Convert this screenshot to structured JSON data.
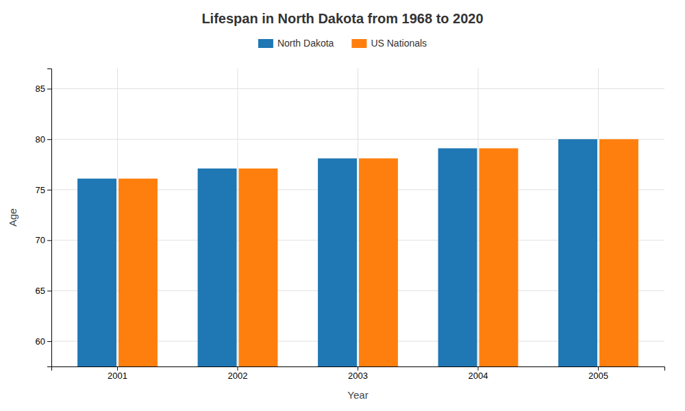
{
  "chart_data": {
    "type": "bar",
    "title": "Lifespan in North Dakota from 1968 to 2020",
    "xlabel": "Year",
    "ylabel": "Age",
    "categories": [
      "2001",
      "2002",
      "2003",
      "2004",
      "2005"
    ],
    "series": [
      {
        "name": "North Dakota",
        "values": [
          76.1,
          77.1,
          78.1,
          79.1,
          80.0
        ]
      },
      {
        "name": "US Nationals",
        "values": [
          76.1,
          77.1,
          78.1,
          79.1,
          80.0
        ]
      }
    ],
    "ylim": [
      57.5,
      87
    ],
    "yticks": [
      60,
      65,
      70,
      75,
      80,
      85
    ],
    "grid": true,
    "legend": "top"
  }
}
